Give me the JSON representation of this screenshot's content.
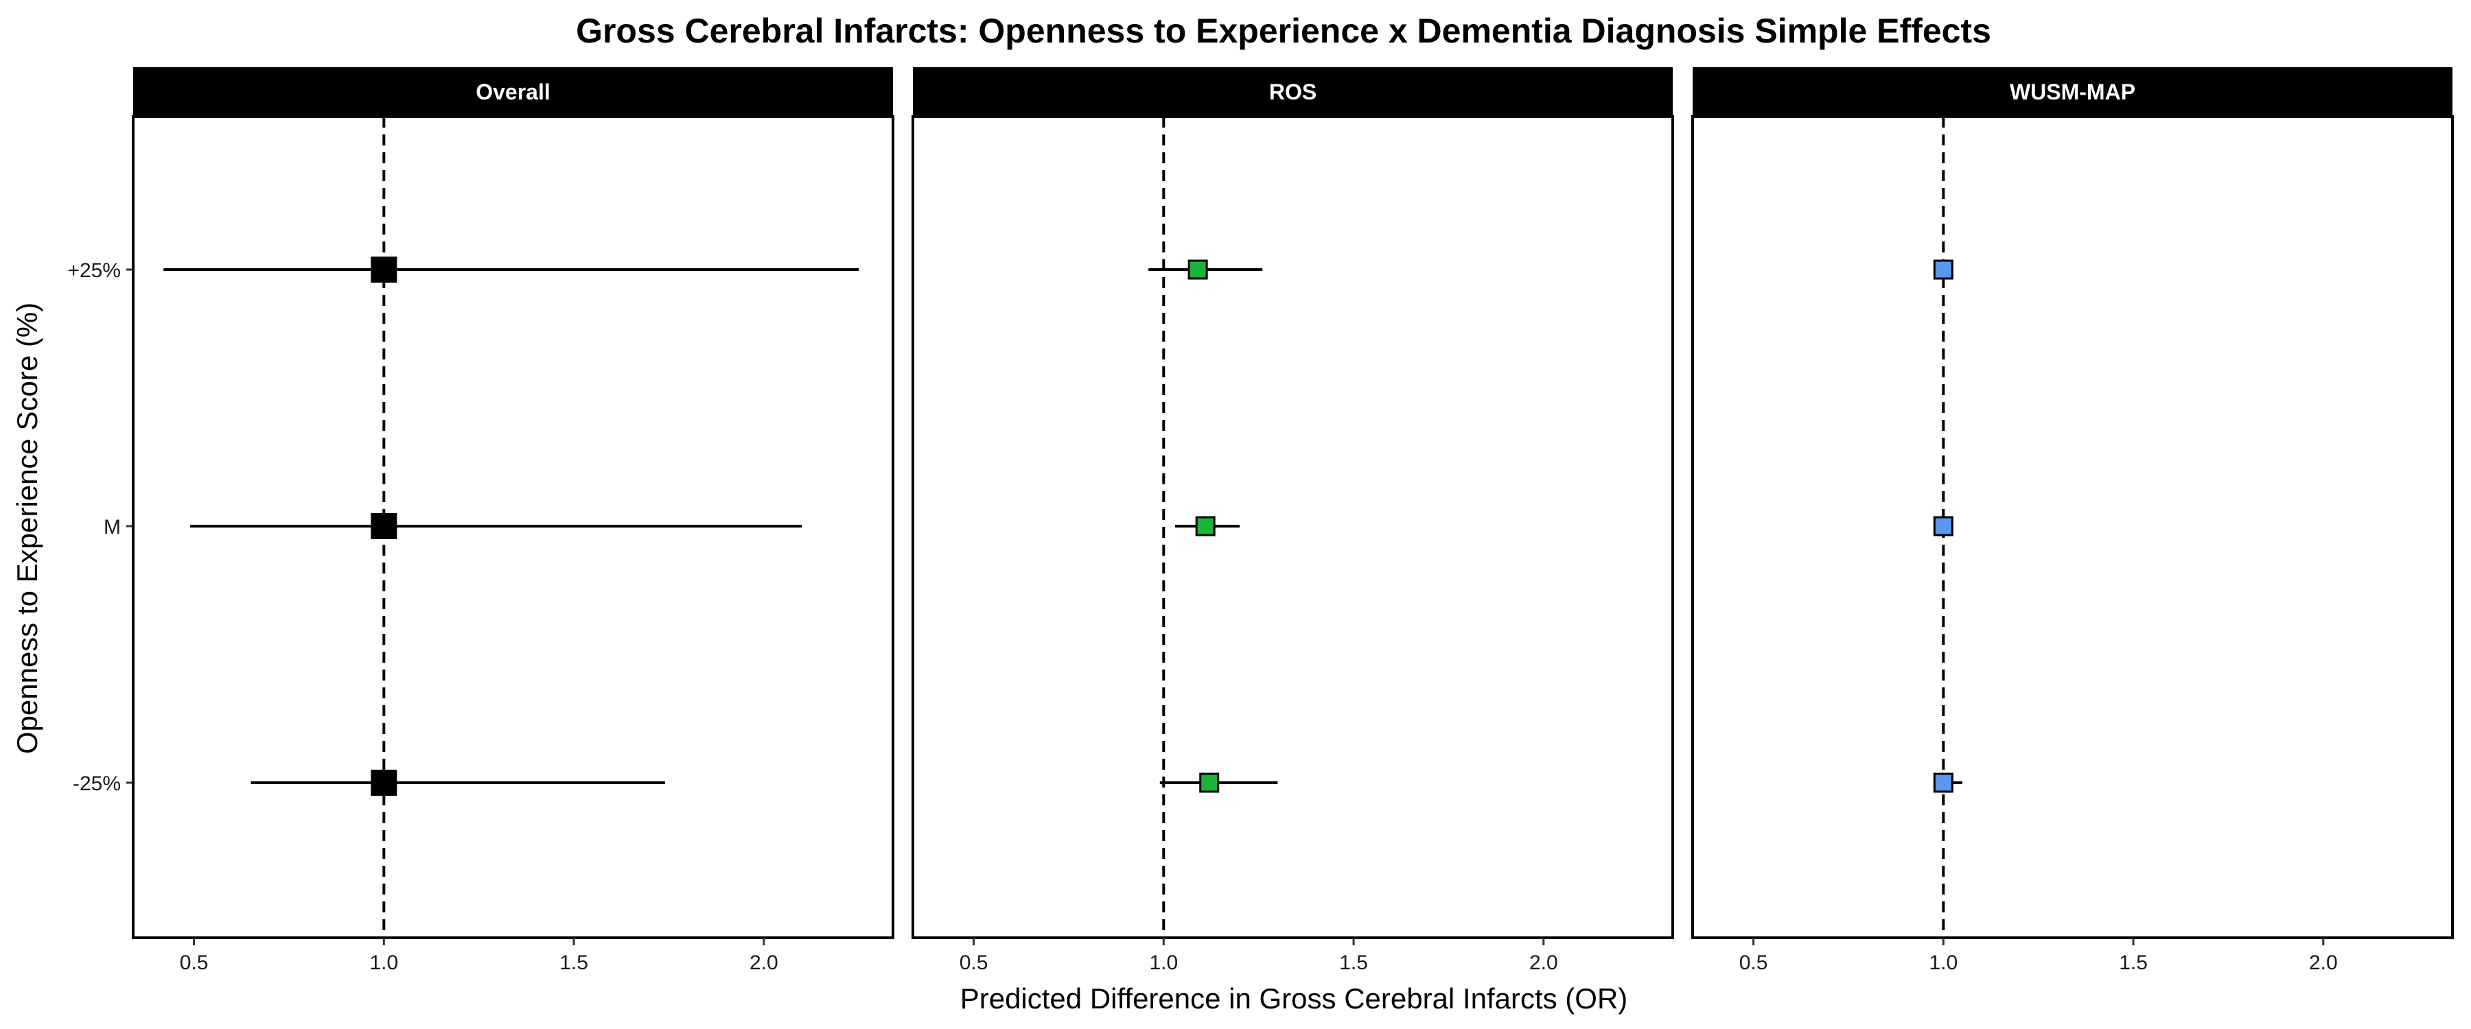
{
  "chart_data": {
    "type": "forest",
    "title": "Gross Cerebral Infarcts: Openness to Experience x Dementia Diagnosis Simple Effects",
    "xlabel": "Predicted Difference in Gross Cerebral Infarcts (OR)",
    "ylabel": "Openness to Experience Score (%)",
    "xlim": [
      0.34,
      2.34
    ],
    "x_ticks": [
      0.5,
      1.0,
      1.5,
      2.0
    ],
    "x_tick_labels": [
      "0.5",
      "1.0",
      "1.5",
      "2.0"
    ],
    "y_categories": [
      "+25%",
      "M",
      "-25%"
    ],
    "reference_line": 1.0,
    "panels": [
      {
        "name": "Overall",
        "color": "#000000",
        "points": [
          {
            "category": "+25%",
            "estimate": 1.0,
            "lower": 0.42,
            "upper": 2.25
          },
          {
            "category": "M",
            "estimate": 1.0,
            "lower": 0.49,
            "upper": 2.1
          },
          {
            "category": "-25%",
            "estimate": 1.0,
            "lower": 0.65,
            "upper": 1.74
          }
        ]
      },
      {
        "name": "ROS",
        "color": "#1db33a",
        "points": [
          {
            "category": "+25%",
            "estimate": 1.09,
            "lower": 0.96,
            "upper": 1.26
          },
          {
            "category": "M",
            "estimate": 1.11,
            "lower": 1.03,
            "upper": 1.2
          },
          {
            "category": "-25%",
            "estimate": 1.12,
            "lower": 0.99,
            "upper": 1.3
          }
        ]
      },
      {
        "name": "WUSM-MAP",
        "color": "#5b96f0",
        "points": [
          {
            "category": "+25%",
            "estimate": 1.0,
            "lower": 0.99,
            "upper": 1.01
          },
          {
            "category": "M",
            "estimate": 1.0,
            "lower": 0.99,
            "upper": 1.01
          },
          {
            "category": "-25%",
            "estimate": 1.0,
            "lower": 0.99,
            "upper": 1.05
          }
        ]
      }
    ]
  }
}
